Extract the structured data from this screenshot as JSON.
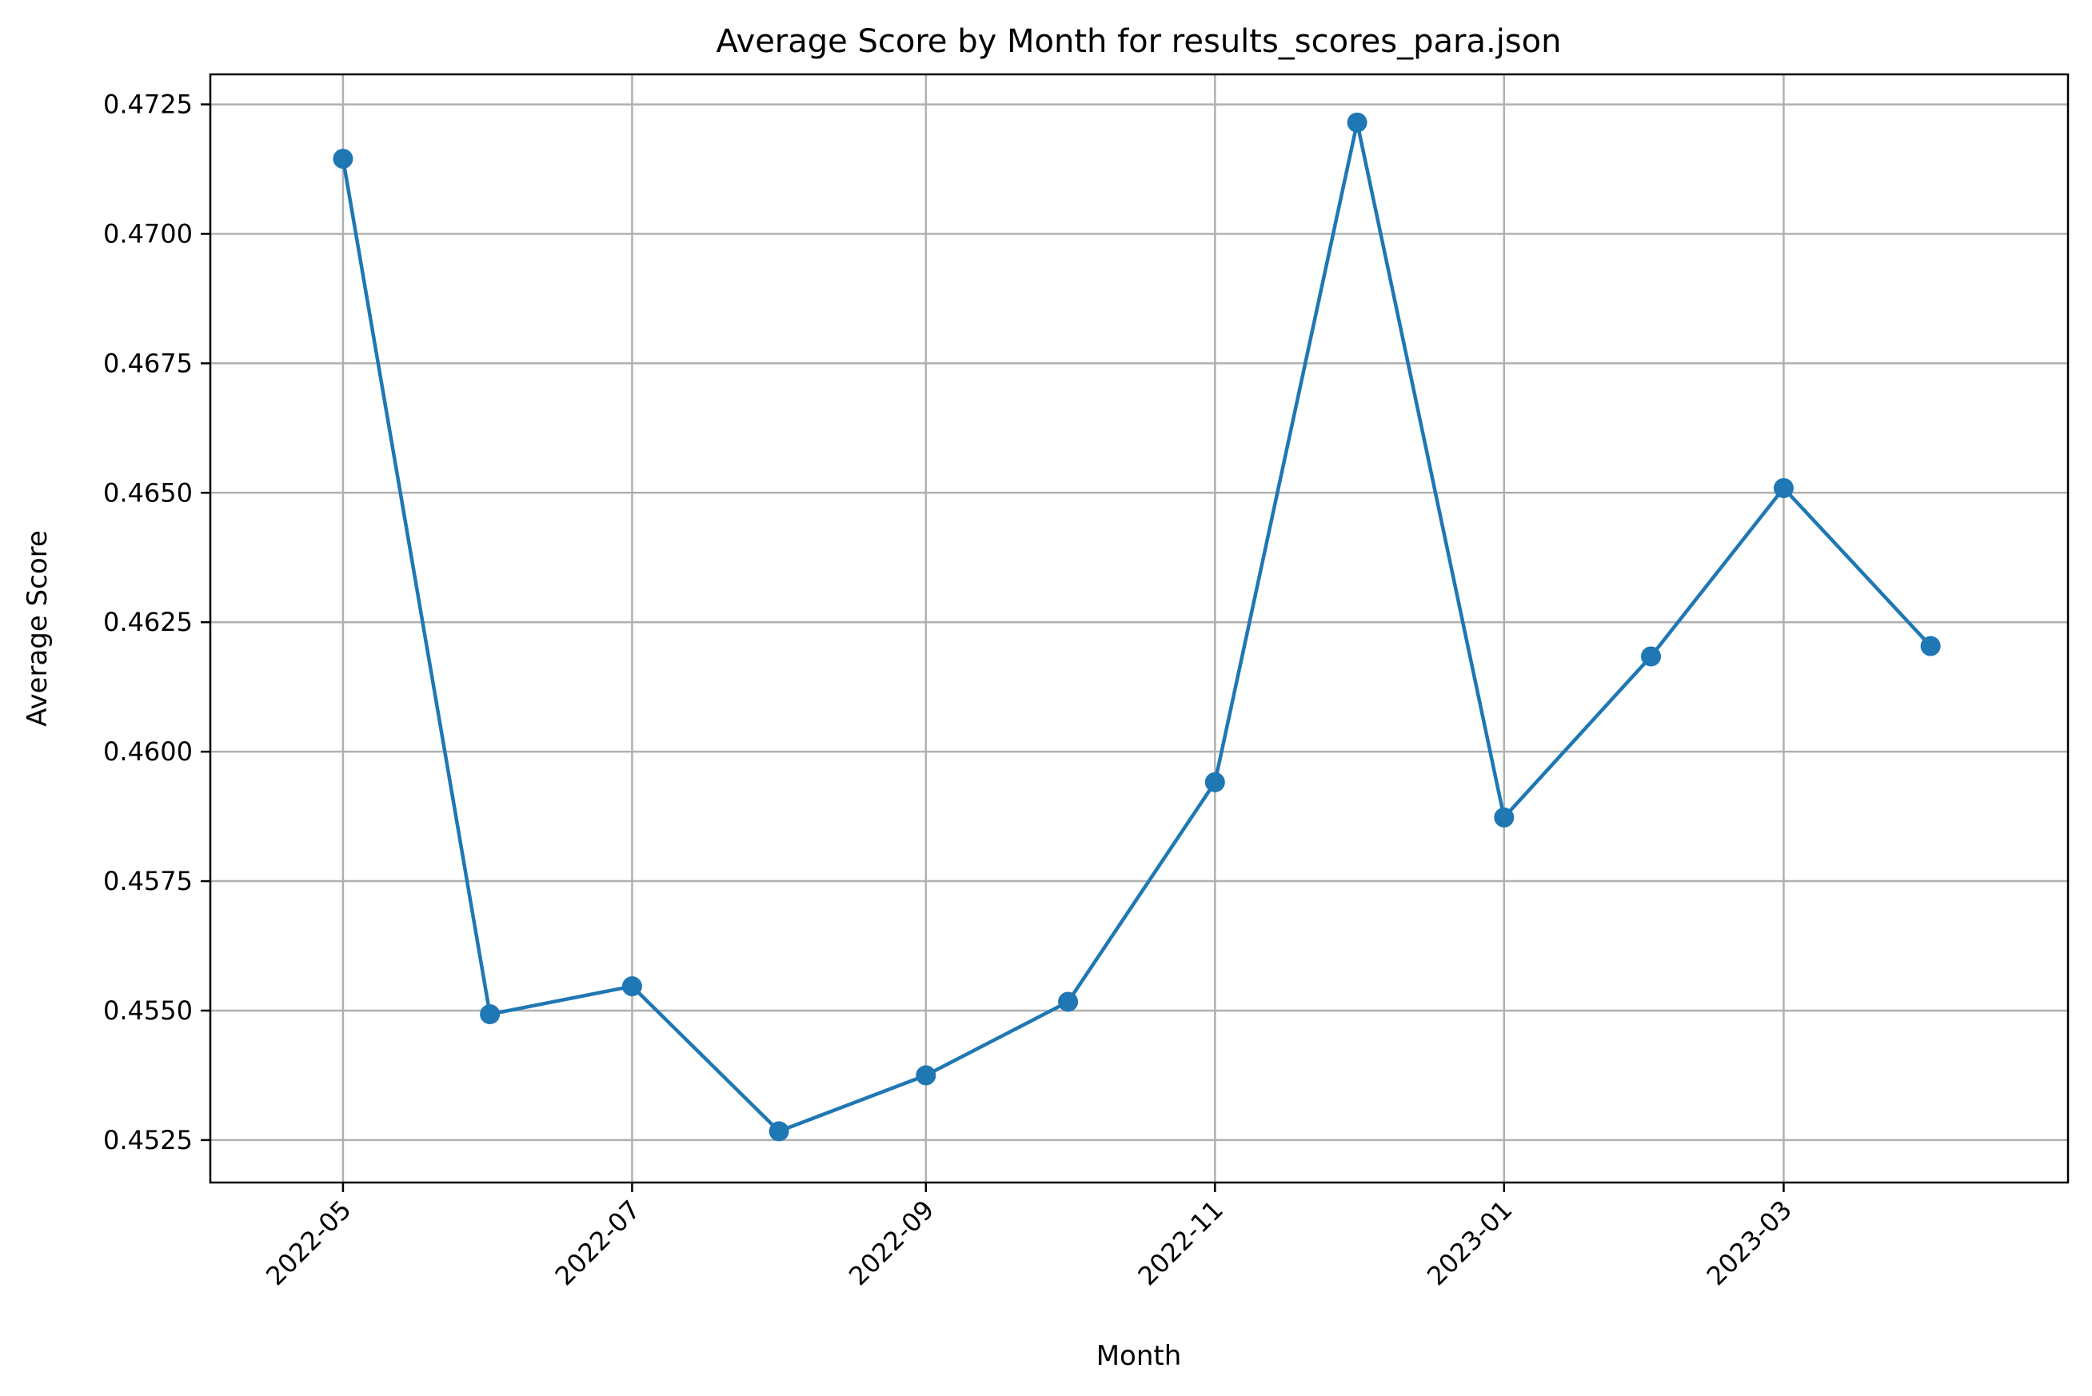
{
  "chart_data": {
    "type": "line",
    "title": "Average Score by Month for results_scores_para.json",
    "xlabel": "Month",
    "ylabel": "Average Score",
    "x": [
      "2022-05",
      "2022-06",
      "2022-07",
      "2022-08",
      "2022-09",
      "2022-10",
      "2022-11",
      "2022-12",
      "2023-01",
      "2023-02",
      "2023-03",
      "2023-04"
    ],
    "series": [
      {
        "values": [
          0.47145,
          0.45493,
          0.45547,
          0.45267,
          0.45375,
          0.45517,
          0.45941,
          0.47215,
          0.45873,
          0.46184,
          0.46509,
          0.46204
        ],
        "color": "#1f77b4",
        "marker": "circle"
      }
    ],
    "xticks": [
      "2022-05",
      "2022-07",
      "2022-09",
      "2022-11",
      "2023-01",
      "2023-03"
    ],
    "yticks": [
      "0.4525",
      "0.4550",
      "0.4575",
      "0.4600",
      "0.4625",
      "0.4650",
      "0.4675",
      "0.4700",
      "0.4725"
    ],
    "ylim": [
      0.45168,
      0.47308
    ],
    "xlim": [
      "2022-04-03",
      "2023-04-30"
    ],
    "grid": true,
    "legend": "none"
  }
}
